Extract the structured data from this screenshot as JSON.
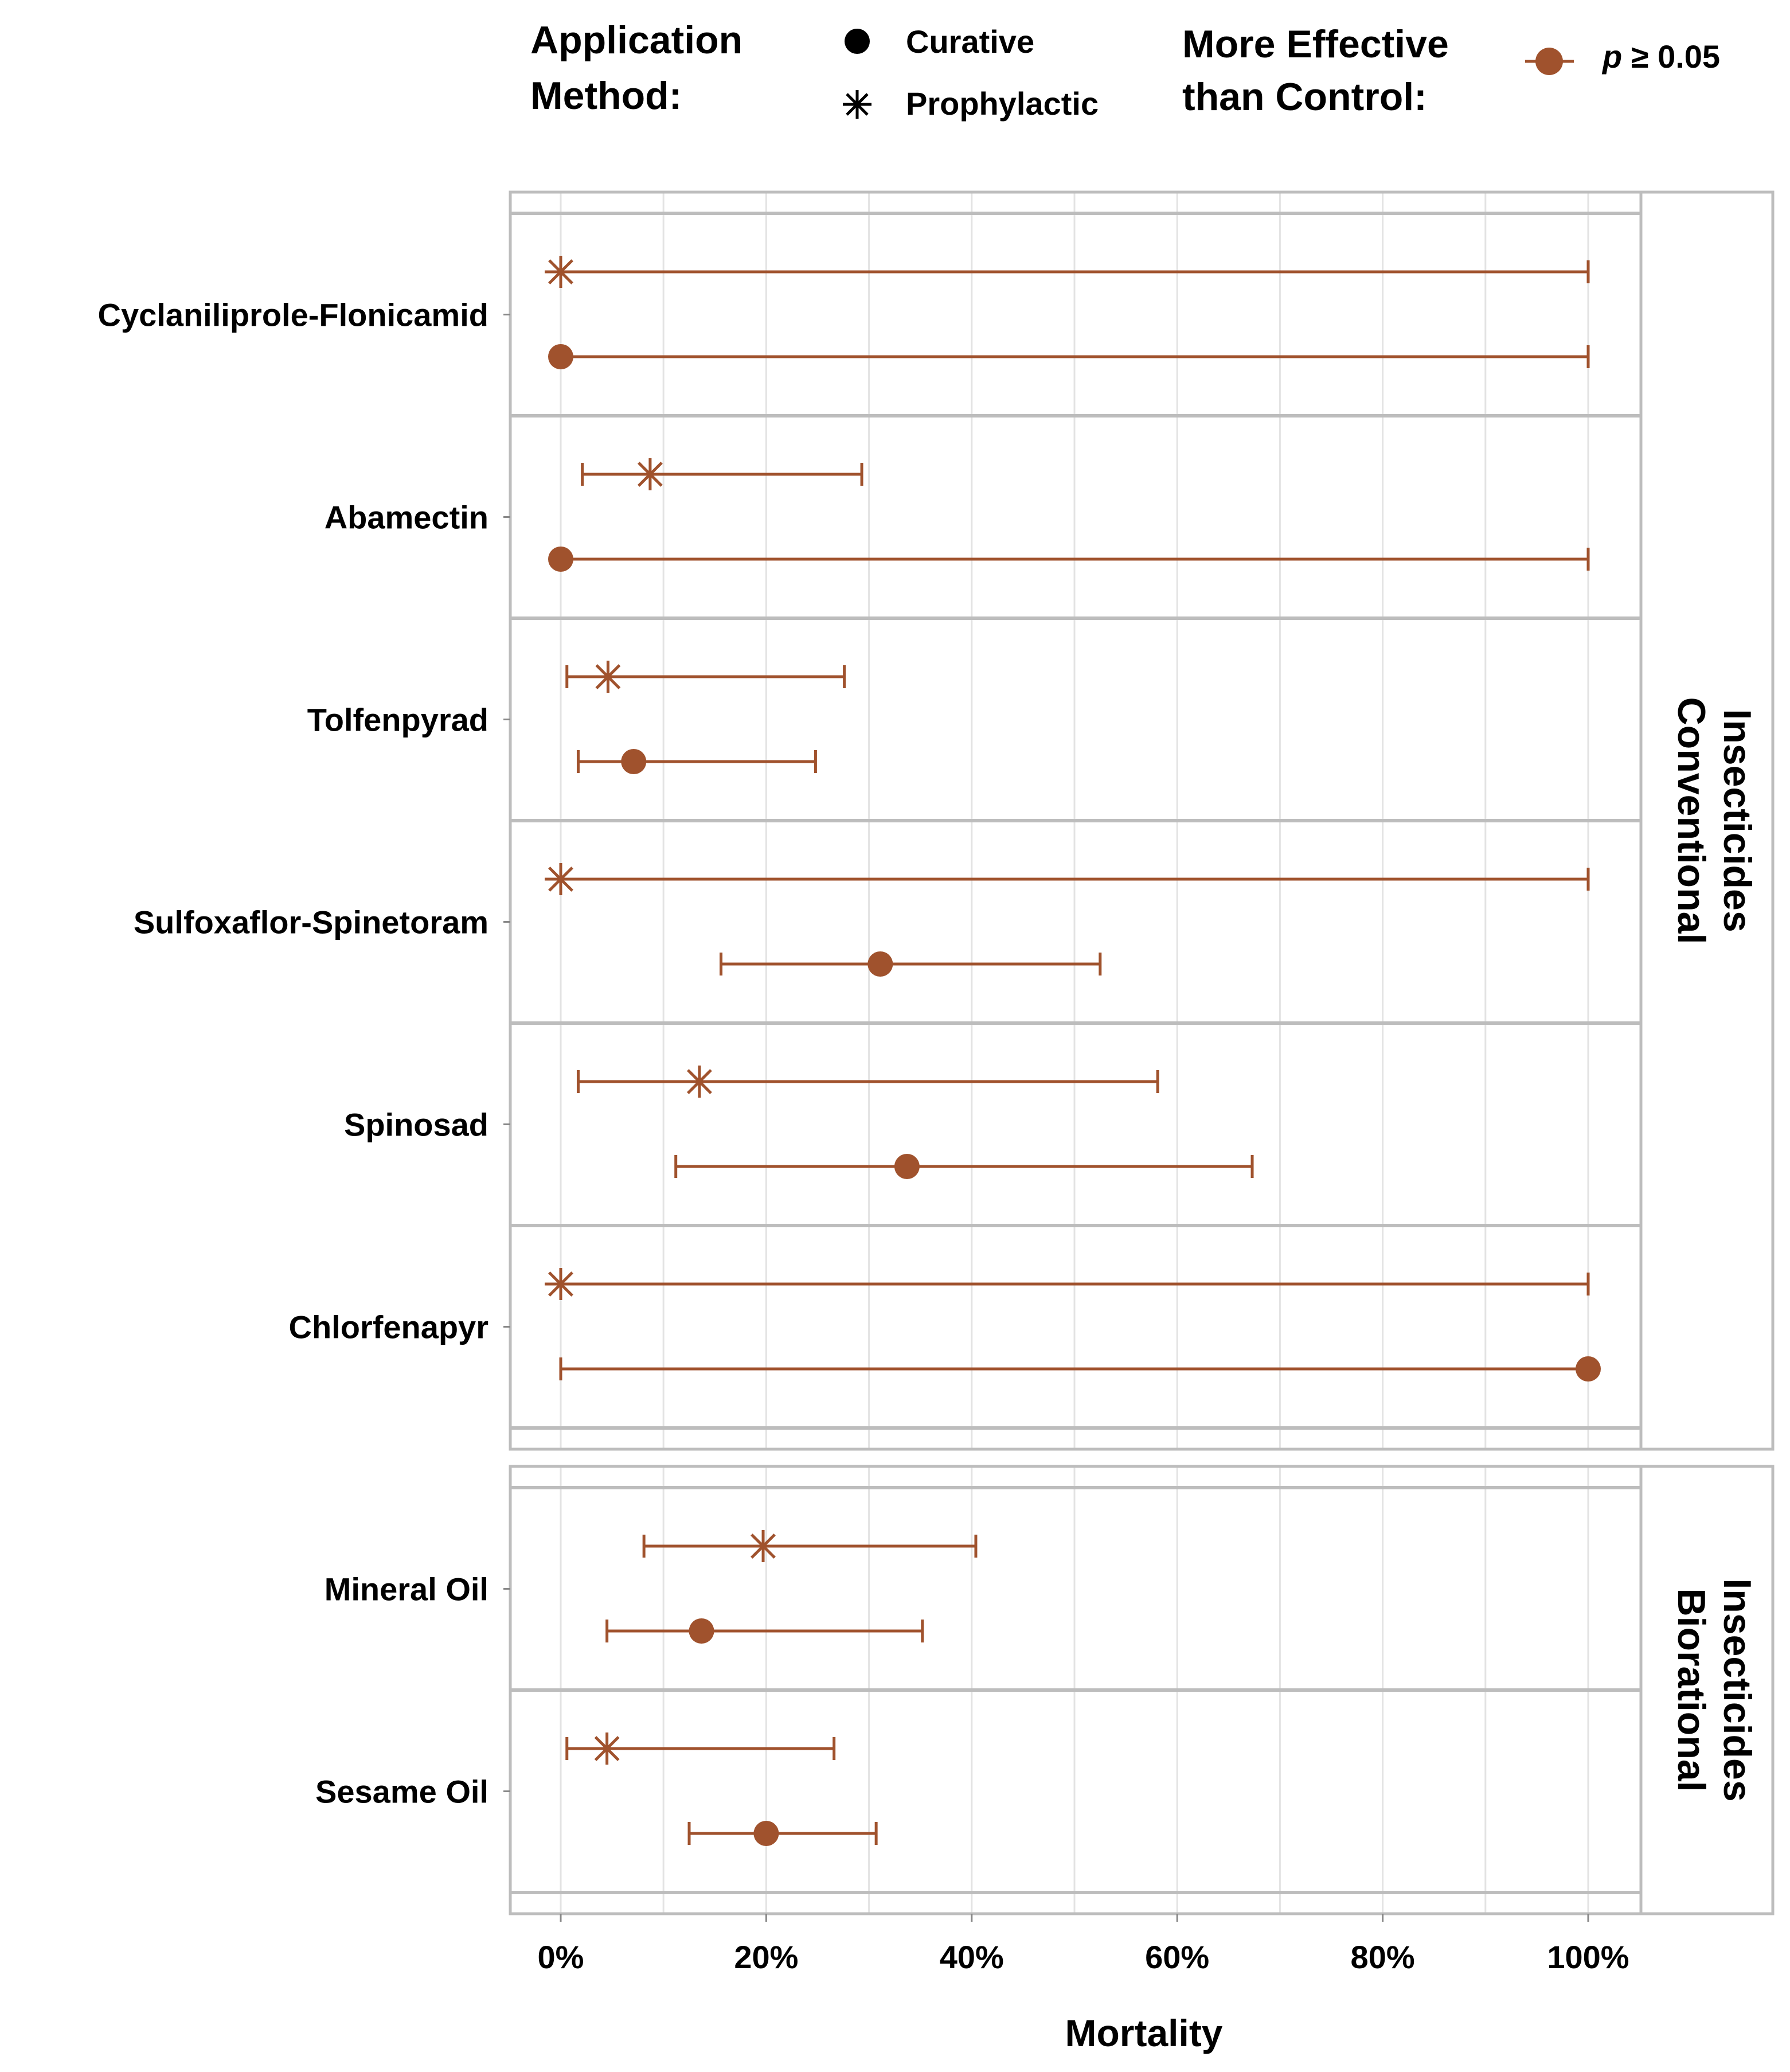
{
  "chart_data": {
    "type": "forest",
    "xlabel": "Mortality",
    "xlim": [
      -0.05,
      1.05
    ],
    "xticks": [
      0,
      0.2,
      0.4,
      0.6,
      0.8,
      1.0
    ],
    "xtick_labels": [
      "0%",
      "20%",
      "40%",
      "60%",
      "80%",
      "100%"
    ],
    "grid": true,
    "legend": {
      "method_title": [
        "Application",
        "Method:"
      ],
      "methods": [
        {
          "key": "curative",
          "label": "Curative",
          "marker": "filled-circle"
        },
        {
          "key": "prophylactic",
          "label": "Prophylactic",
          "marker": "asterisk"
        }
      ],
      "signif_title": [
        "More Effective",
        "than Control:"
      ],
      "signif_italic": "p",
      "signif_rest": " ≥ 0.05",
      "placement": "top"
    },
    "colors": {
      "series": "#A0522D",
      "panel_border": "#BDBDBD",
      "grid": "#E3E3E3"
    },
    "panels": [
      {
        "strip": [
          "Conventional",
          "Insecticides"
        ],
        "rows": [
          {
            "label": "Cyclaniliprole-Flonicamid",
            "prophylactic": {
              "est": 0.0,
              "lo": 0.0,
              "hi": 1.0
            },
            "curative": {
              "est": 0.0,
              "lo": 0.0,
              "hi": 1.0
            }
          },
          {
            "label": "Abamectin",
            "prophylactic": {
              "est": 0.087,
              "lo": 0.021,
              "hi": 0.293
            },
            "curative": {
              "est": 0.0,
              "lo": 0.0,
              "hi": 1.0
            }
          },
          {
            "label": "Tolfenpyrad",
            "prophylactic": {
              "est": 0.046,
              "lo": 0.006,
              "hi": 0.276
            },
            "curative": {
              "est": 0.071,
              "lo": 0.017,
              "hi": 0.248
            }
          },
          {
            "label": "Sulfoxaflor-Spinetoram",
            "prophylactic": {
              "est": 0.0,
              "lo": 0.0,
              "hi": 1.0
            },
            "curative": {
              "est": 0.311,
              "lo": 0.156,
              "hi": 0.525
            }
          },
          {
            "label": "Spinosad",
            "prophylactic": {
              "est": 0.135,
              "lo": 0.017,
              "hi": 0.581
            },
            "curative": {
              "est": 0.337,
              "lo": 0.112,
              "hi": 0.673
            }
          },
          {
            "label": "Chlorfenapyr",
            "prophylactic": {
              "est": 0.0,
              "lo": 0.0,
              "hi": 1.0
            },
            "curative": {
              "est": 1.0,
              "lo": 0.0,
              "hi": 1.0
            }
          }
        ]
      },
      {
        "strip": [
          "Biorational",
          "Insecticides"
        ],
        "rows": [
          {
            "label": "Mineral Oil",
            "prophylactic": {
              "est": 0.197,
              "lo": 0.081,
              "hi": 0.404
            },
            "curative": {
              "est": 0.137,
              "lo": 0.045,
              "hi": 0.352
            }
          },
          {
            "label": "Sesame Oil",
            "prophylactic": {
              "est": 0.045,
              "lo": 0.006,
              "hi": 0.266
            },
            "curative": {
              "est": 0.2,
              "lo": 0.125,
              "hi": 0.307
            }
          }
        ]
      }
    ]
  }
}
